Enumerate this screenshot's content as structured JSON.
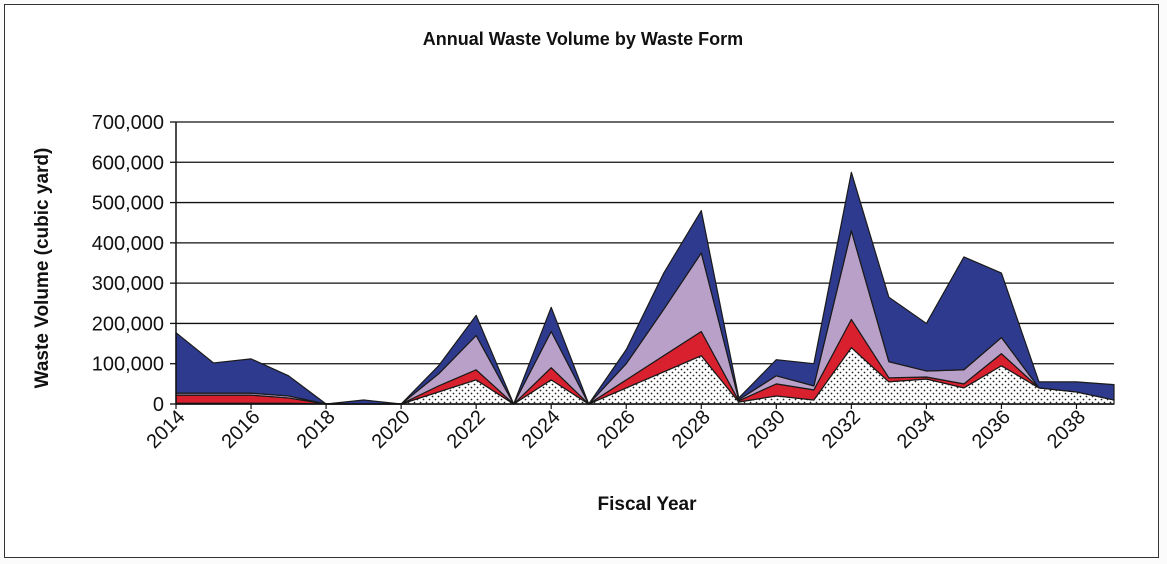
{
  "chart_data": {
    "type": "area",
    "stacked": true,
    "title": "Annual Waste Volume by Waste Form",
    "xlabel": "Fiscal Year",
    "ylabel": "Waste Volume (cubic yard)",
    "x": [
      2014,
      2015,
      2016,
      2017,
      2018,
      2019,
      2020,
      2021,
      2022,
      2023,
      2024,
      2025,
      2026,
      2027,
      2028,
      2029,
      2030,
      2031,
      2032,
      2033,
      2034,
      2035,
      2036,
      2037,
      2038,
      2039
    ],
    "xlim": [
      2014,
      2039
    ],
    "x_tick_labels": [
      "2014",
      "2016",
      "2018",
      "2020",
      "2022",
      "2024",
      "2026",
      "2028",
      "2030",
      "2032",
      "2034",
      "2036",
      "2038"
    ],
    "ylim": [
      0,
      700000
    ],
    "y_tick_labels": [
      "0",
      "100,000",
      "200,000",
      "300,000",
      "400,000",
      "500,000",
      "600,000",
      "700,000"
    ],
    "grid": "horizontal",
    "legend": "none",
    "series": [
      {
        "color": "#ffffff",
        "pattern": "dots",
        "values": [
          2000,
          2000,
          2000,
          2000,
          0,
          0,
          0,
          30000,
          60000,
          0,
          60000,
          0,
          40000,
          80000,
          120000,
          5000,
          20000,
          10000,
          140000,
          55000,
          62000,
          40000,
          95000,
          40000,
          30000,
          10000
        ]
      },
      {
        "color": "#d8202e",
        "values": [
          20000,
          20000,
          20000,
          13000,
          0,
          0,
          0,
          15000,
          25000,
          0,
          30000,
          0,
          20000,
          40000,
          60000,
          3000,
          30000,
          25000,
          70000,
          10000,
          5000,
          10000,
          30000,
          0,
          0,
          0
        ]
      },
      {
        "color": "#b8a0c8",
        "values": [
          5000,
          5000,
          5000,
          5000,
          0,
          0,
          0,
          30000,
          85000,
          0,
          90000,
          0,
          40000,
          115000,
          195000,
          3000,
          20000,
          10000,
          220000,
          40000,
          15000,
          35000,
          40000,
          0,
          0,
          0
        ]
      },
      {
        "color": "#2e3a8e",
        "values": [
          150000,
          75000,
          85000,
          50000,
          0,
          10000,
          0,
          20000,
          50000,
          0,
          60000,
          0,
          35000,
          90000,
          105000,
          4000,
          40000,
          55000,
          145000,
          160000,
          118000,
          280000,
          160000,
          15000,
          25000,
          38000
        ]
      }
    ]
  }
}
